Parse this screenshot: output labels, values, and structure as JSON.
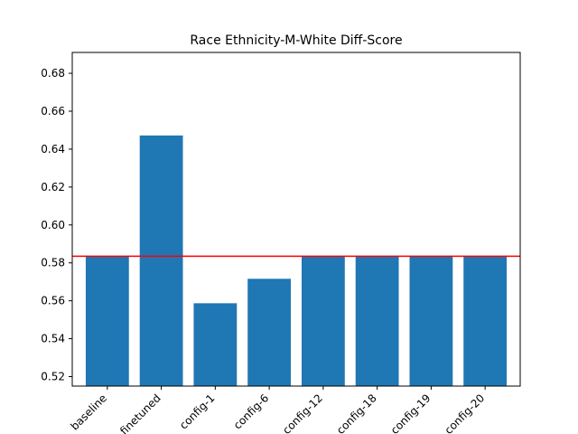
{
  "chart_data": {
    "type": "bar",
    "title": "Race Ethnicity-M-White Diff-Score",
    "xlabel": "",
    "ylabel": "",
    "categories": [
      "baseline",
      "finetuned",
      "config-1",
      "config-6",
      "config-12",
      "config-18",
      "config-19",
      "config-20"
    ],
    "values": [
      0.5835,
      0.6472,
      0.5587,
      0.5716,
      0.5835,
      0.5835,
      0.5835,
      0.5835
    ],
    "ylim": [
      0.515,
      0.691
    ],
    "yticks": [
      0.52,
      0.54,
      0.56,
      0.58,
      0.6,
      0.62,
      0.64,
      0.66,
      0.68
    ],
    "ytick_labels": [
      "0.52",
      "0.54",
      "0.56",
      "0.58",
      "0.60",
      "0.62",
      "0.64",
      "0.66",
      "0.68"
    ],
    "reference_line": {
      "value": 0.5835,
      "color": "#ff0000"
    },
    "bar_color": "#1f77b4",
    "grid": false,
    "legend": "none"
  }
}
